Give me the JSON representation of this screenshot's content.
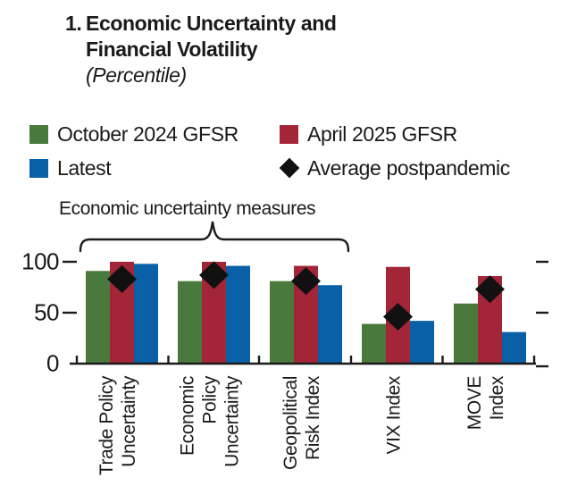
{
  "figure": {
    "number": "1.",
    "title_line1": "Economic Uncertainty and",
    "title_line2": "Financial Volatility",
    "subtitle": "(Percentile)"
  },
  "legend": {
    "items": [
      {
        "label": "October 2024 GFSR",
        "marker": "square",
        "color": "#49793c"
      },
      {
        "label": "April 2025 GFSR",
        "marker": "square",
        "color": "#a32638"
      },
      {
        "label": "Latest",
        "marker": "square",
        "color": "#0a60a6"
      },
      {
        "label": "Average postpandemic",
        "marker": "diamond",
        "color": "#111111"
      }
    ]
  },
  "annotation": {
    "label": "Economic uncertainty measures",
    "brace_covers": [
      "Trade Policy Uncertainty",
      "Economic Policy Uncertainty",
      "Geopolitical Risk Index"
    ]
  },
  "chart_data": {
    "type": "bar",
    "title": "1. Economic Uncertainty and Financial Volatility",
    "subtitle": "(Percentile)",
    "categories": [
      "Trade Policy Uncertainty",
      "Economic Policy Uncertainty",
      "Geopolitical Risk Index",
      "VIX Index",
      "MOVE Index"
    ],
    "category_label_lines": [
      [
        "Trade Policy",
        "Uncertainty"
      ],
      [
        "Economic",
        "Policy",
        "Uncertainty"
      ],
      [
        "Geopolitical",
        "Risk Index"
      ],
      [
        "VIX Index"
      ],
      [
        "MOVE",
        "Index"
      ]
    ],
    "series": [
      {
        "name": "October 2024 GFSR",
        "color": "#49793c",
        "values": [
          91,
          81,
          81,
          39,
          59
        ]
      },
      {
        "name": "April 2025 GFSR",
        "color": "#a32638",
        "values": [
          100,
          100,
          96,
          95,
          86
        ]
      },
      {
        "name": "Latest",
        "color": "#0a60a6",
        "values": [
          98,
          96,
          77,
          42,
          31
        ]
      }
    ],
    "point_series": {
      "name": "Average postpandemic",
      "color": "#111111",
      "marker": "diamond",
      "values": [
        83,
        87,
        81,
        46,
        73
      ]
    },
    "ylim": [
      0,
      100
    ],
    "yticks": [
      0,
      50,
      100
    ],
    "ylabel": "",
    "xlabel": "",
    "grid": false,
    "legend_position": "top"
  }
}
